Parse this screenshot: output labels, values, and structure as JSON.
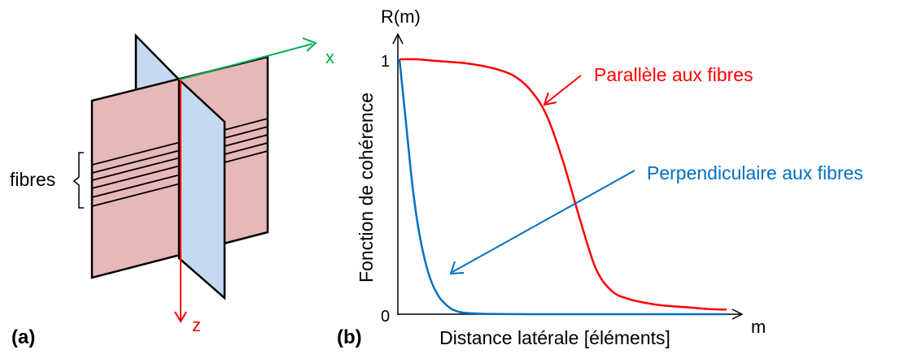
{
  "panel_a": {
    "label": "(a)",
    "axis_x": "x",
    "axis_z": "z",
    "fibres_label": "fibres",
    "colors": {
      "plane_xz": "#e6b8b7",
      "plane_yz": "#c5d9f1",
      "axis_x": "#00b050",
      "axis_z": "#ff0000",
      "edge": "#000000"
    }
  },
  "panel_b": {
    "label": "(b)",
    "y_axis_title": "R(m)",
    "x_axis_title": "m",
    "y_label": "Fonction de cohérence",
    "x_label": "Distance latérale [éléments]",
    "tick_top": "1",
    "tick_origin": "0",
    "annotation_parallel": "Parallèle aux fibres",
    "annotation_perpendicular": "Perpendiculaire aux fibres"
  },
  "chart_data": {
    "type": "line",
    "xlabel": "Distance latérale [éléments]",
    "ylabel": "Fonction de cohérence",
    "ylim": [
      0,
      1
    ],
    "series": [
      {
        "name": "Parallèle aux fibres",
        "color": "#ff0000",
        "x": [
          0,
          0.05,
          0.1,
          0.15,
          0.2,
          0.25,
          0.3,
          0.35,
          0.4,
          0.45,
          0.5,
          0.55,
          0.6,
          0.65,
          0.7,
          0.75,
          0.8,
          0.85,
          0.9,
          0.95,
          1.0
        ],
        "y": [
          1.0,
          1.0,
          0.995,
          0.99,
          0.985,
          0.975,
          0.96,
          0.935,
          0.88,
          0.78,
          0.6,
          0.38,
          0.18,
          0.09,
          0.06,
          0.045,
          0.035,
          0.03,
          0.025,
          0.02,
          0.018
        ]
      },
      {
        "name": "Perpendiculaire aux fibres",
        "color": "#0070c0",
        "x": [
          0,
          0.02,
          0.04,
          0.06,
          0.08,
          0.1,
          0.12,
          0.14,
          0.16,
          0.18,
          0.2,
          0.25,
          0.3,
          0.4,
          0.5,
          0.7,
          1.0
        ],
        "y": [
          1.0,
          0.75,
          0.5,
          0.32,
          0.2,
          0.12,
          0.07,
          0.04,
          0.02,
          0.01,
          0.005,
          0.002,
          0.001,
          0,
          0,
          0,
          0
        ]
      }
    ]
  }
}
